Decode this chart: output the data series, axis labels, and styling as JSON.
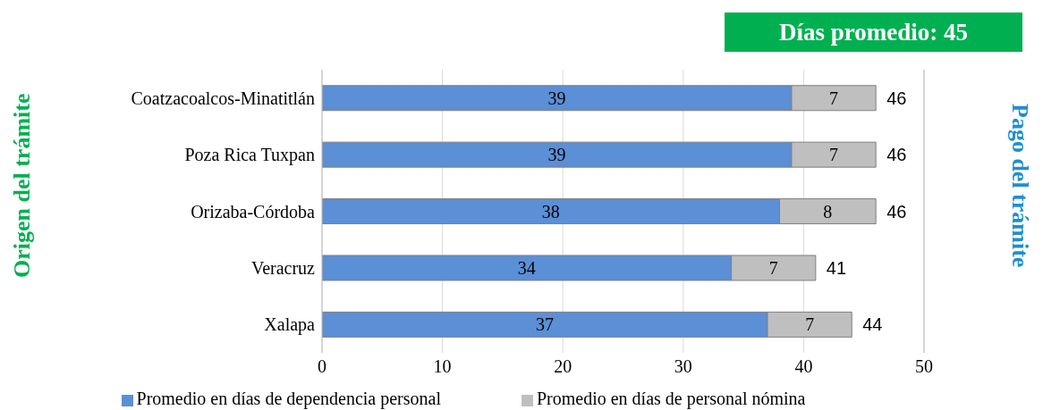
{
  "chart_data": {
    "type": "bar",
    "orientation": "horizontal",
    "stacked": true,
    "title": "Días promedio: 45",
    "ylabel": "Origen del trámite",
    "y2label": "Pago del trámite",
    "categories": [
      "Coatzacoalcos-Minatitlán",
      "Poza Rica Tuxpan",
      "Orizaba-Córdoba",
      "Veracruz",
      "Xalapa"
    ],
    "series": [
      {
        "name": "Promedio en días de  dependencia personal",
        "color": "#5b8fd6",
        "values": [
          39,
          39,
          38,
          34,
          37
        ]
      },
      {
        "name": "Promedio en días de personal nómina",
        "color": "#bfbfbf",
        "values": [
          7,
          7,
          8,
          7,
          7
        ]
      }
    ],
    "totals": [
      "46",
      "46",
      "46",
      "41",
      "44"
    ],
    "xlim": [
      0,
      50
    ],
    "xticks": [
      0,
      10,
      20,
      30,
      40,
      50
    ],
    "grid": "x",
    "legend": "bottom",
    "data_labels": true
  }
}
